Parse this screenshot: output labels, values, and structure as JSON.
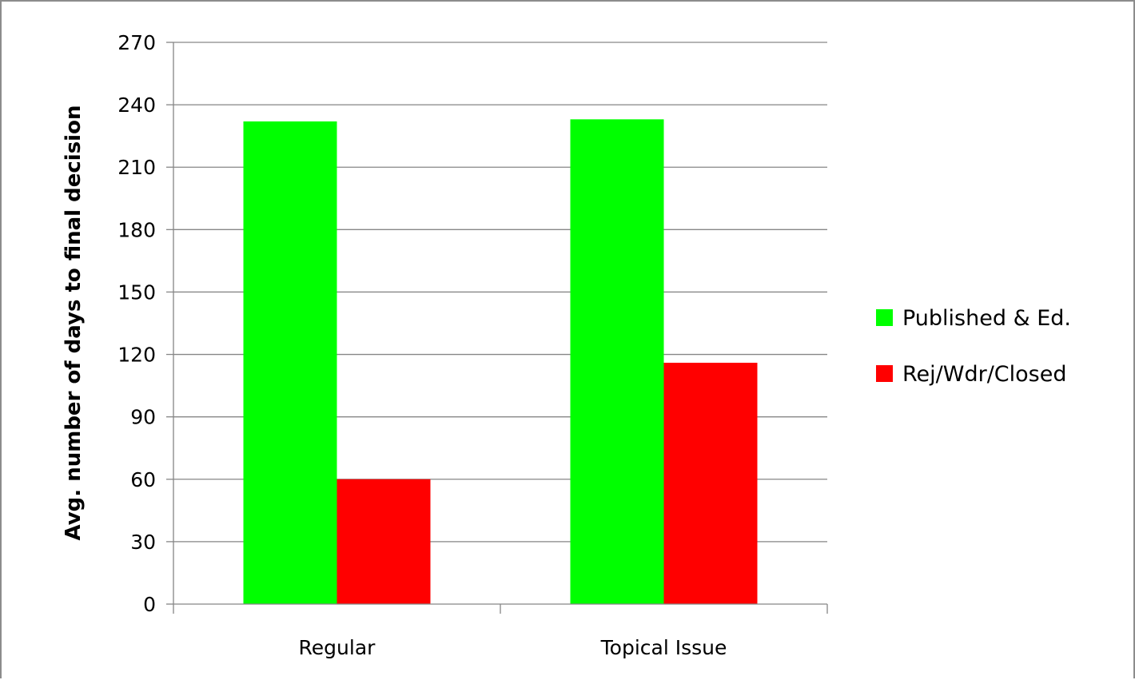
{
  "chart_data": {
    "type": "bar",
    "title": "",
    "xlabel": "",
    "ylabel": "Avg. number of days to final decision",
    "categories": [
      "Regular",
      "Topical Issue"
    ],
    "series": [
      {
        "name": "Published & Ed.",
        "color": "#00ff00",
        "values": [
          232,
          233
        ]
      },
      {
        "name": "Rej/Wdr/Closed",
        "color": "#ff0000",
        "values": [
          60,
          116
        ]
      }
    ],
    "ylim": [
      0,
      270
    ],
    "yticks": [
      "0",
      "30",
      "60",
      "90",
      "120",
      "150",
      "180",
      "210",
      "240",
      "270"
    ],
    "grid": true,
    "legend_position": "right"
  }
}
